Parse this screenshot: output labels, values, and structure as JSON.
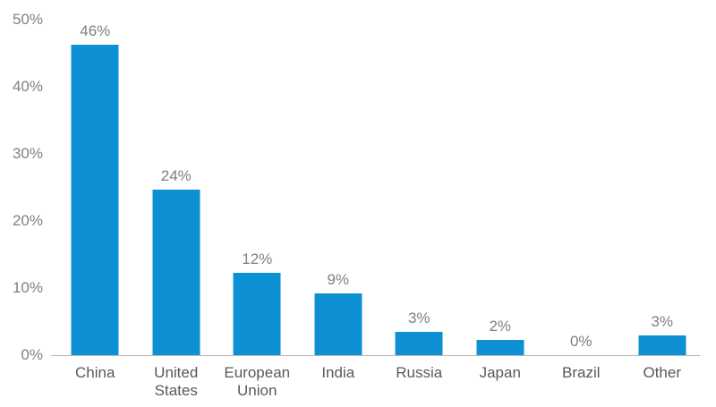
{
  "chart_data": {
    "type": "bar",
    "title": "",
    "xlabel": "",
    "ylabel": "",
    "categories": [
      "China",
      "United States",
      "European Union",
      "India",
      "Russia",
      "Japan",
      "Brazil",
      "Other"
    ],
    "values": [
      46,
      24,
      12,
      9,
      3,
      2,
      0,
      3
    ],
    "data_labels": [
      "46%",
      "24%",
      "12%",
      "9%",
      "3%",
      "2%",
      "0%",
      "3%"
    ],
    "bar_heights_pct_est": [
      46.3,
      24.6,
      12.2,
      9.2,
      3.4,
      2.3,
      0.0,
      2.9
    ],
    "ylim": [
      0,
      50
    ],
    "ytick_labels": [
      "0%",
      "10%",
      "20%",
      "30%",
      "40%",
      "50%"
    ],
    "grid": false,
    "legend": "none",
    "colors": {
      "bar": "#0e90d5",
      "axis_line": "#b7b7b7",
      "ytick_label": "#808080",
      "data_label": "#7f7f7f",
      "category_label": "#595959",
      "background": "#ffffff"
    }
  }
}
